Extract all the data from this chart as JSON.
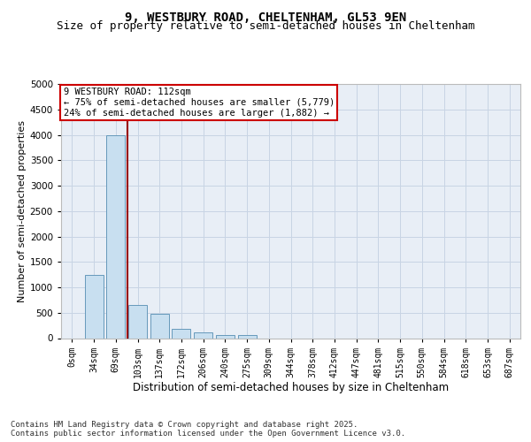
{
  "title": "9, WESTBURY ROAD, CHELTENHAM, GL53 9EN",
  "subtitle": "Size of property relative to semi-detached houses in Cheltenham",
  "xlabel": "Distribution of semi-detached houses by size in Cheltenham",
  "ylabel": "Number of semi-detached properties",
  "bar_labels": [
    "0sqm",
    "34sqm",
    "69sqm",
    "103sqm",
    "137sqm",
    "172sqm",
    "206sqm",
    "240sqm",
    "275sqm",
    "309sqm",
    "344sqm",
    "378sqm",
    "412sqm",
    "447sqm",
    "481sqm",
    "515sqm",
    "550sqm",
    "584sqm",
    "618sqm",
    "653sqm",
    "687sqm"
  ],
  "bar_values": [
    0,
    1250,
    4000,
    650,
    480,
    180,
    110,
    65,
    55,
    0,
    0,
    0,
    0,
    0,
    0,
    0,
    0,
    0,
    0,
    0,
    0
  ],
  "bar_color": "#c8dff0",
  "bar_edge_color": "#6699bb",
  "grid_color": "#c8d4e4",
  "background_color": "#e8eef6",
  "ylim": [
    0,
    5000
  ],
  "yticks": [
    0,
    500,
    1000,
    1500,
    2000,
    2500,
    3000,
    3500,
    4000,
    4500,
    5000
  ],
  "property_line_x": 2.55,
  "property_line_color": "#990000",
  "annotation_text": "9 WESTBURY ROAD: 112sqm\n← 75% of semi-detached houses are smaller (5,779)\n24% of semi-detached houses are larger (1,882) →",
  "annotation_box_color": "#cc0000",
  "footnote": "Contains HM Land Registry data © Crown copyright and database right 2025.\nContains public sector information licensed under the Open Government Licence v3.0.",
  "title_fontsize": 10,
  "subtitle_fontsize": 9,
  "annotation_fontsize": 7.5,
  "ylabel_fontsize": 8,
  "xlabel_fontsize": 8.5,
  "footnote_fontsize": 6.5,
  "tick_fontsize": 7
}
